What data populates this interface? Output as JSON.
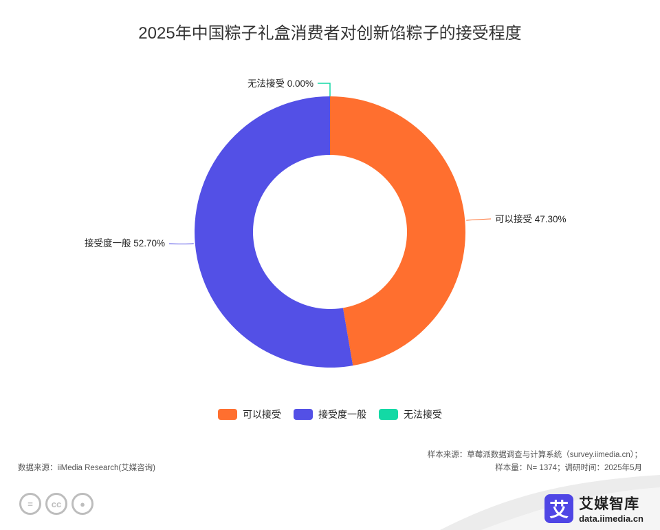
{
  "chart_data": {
    "type": "pie",
    "title": "2025年中国粽子礼盒消费者对创新馅粽子的接受程度",
    "slices": [
      {
        "label": "可以接受",
        "value": 47.3,
        "display": "可以接受 47.30%",
        "color": "#ff6f2f"
      },
      {
        "label": "接受度一般",
        "value": 52.7,
        "display": "接受度一般 52.70%",
        "color": "#5350e6"
      },
      {
        "label": "无法接受",
        "value": 0.0,
        "display": "无法接受 0.00%",
        "color": "#13d9a5"
      }
    ],
    "legend_position": "bottom-center",
    "donut": true
  },
  "footer": {
    "source": "数据来源：iiMedia Research(艾媒咨询)",
    "sample_source": "样本来源：草莓派数据调查与计算系统（survey.iimedia.cn）；",
    "sample_size": "样本量：N= 1374；调研时间：2025年5月"
  },
  "brand": {
    "logo_char": "艾",
    "name": "艾媒智库",
    "url": "data.iimedia.cn"
  },
  "license_icons": [
    "equals-icon",
    "cc-icon",
    "person-icon"
  ]
}
